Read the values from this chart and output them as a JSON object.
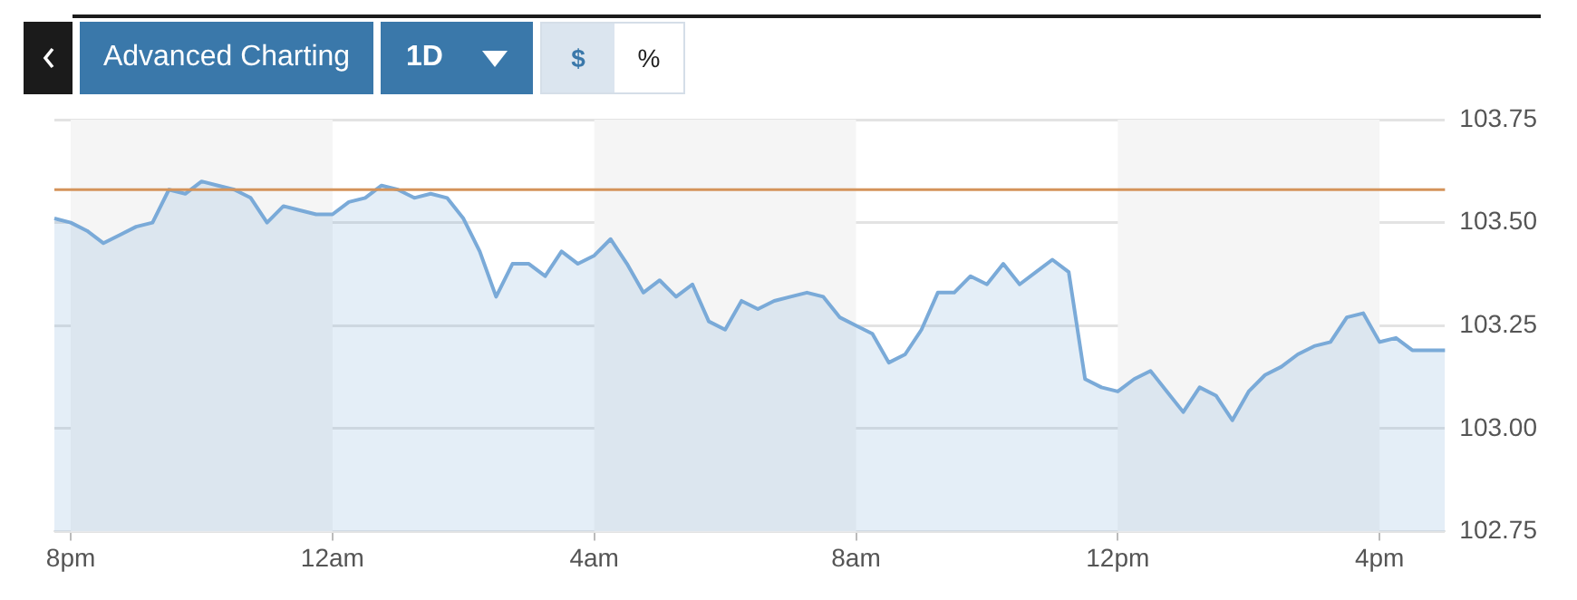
{
  "chart_data": {
    "type": "area",
    "annotations": [
      "Advanced Charting",
      "1D",
      "$",
      "%"
    ],
    "categories": [
      null,
      "8pm",
      null,
      null,
      null,
      null,
      null,
      null,
      null,
      null,
      null,
      null,
      null,
      null,
      null,
      null,
      null,
      "12am",
      null,
      null,
      null,
      null,
      null,
      null,
      null,
      null,
      null,
      null,
      null,
      null,
      null,
      null,
      null,
      "4am",
      null,
      null,
      null,
      null,
      null,
      null,
      null,
      null,
      null,
      null,
      null,
      null,
      null,
      null,
      null,
      "8am",
      null,
      null,
      null,
      null,
      null,
      null,
      null,
      null,
      null,
      null,
      null,
      null,
      null,
      null,
      null,
      "12pm",
      null,
      null,
      null,
      null,
      null,
      null,
      null,
      null,
      null,
      null,
      null,
      null,
      null,
      null,
      null,
      "4pm",
      null,
      null,
      null,
      null
    ],
    "series": [
      {
        "color": "#7aaad8",
        "values": [
          103.51,
          103.5,
          103.48,
          103.45,
          103.47,
          103.49,
          103.5,
          103.58,
          103.57,
          103.6,
          103.59,
          103.58,
          103.56,
          103.5,
          103.54,
          103.53,
          103.52,
          103.52,
          103.55,
          103.56,
          103.59,
          103.58,
          103.56,
          103.57,
          103.56,
          103.51,
          103.43,
          103.32,
          103.4,
          103.4,
          103.37,
          103.43,
          103.4,
          103.42,
          103.46,
          103.4,
          103.33,
          103.36,
          103.32,
          103.35,
          103.26,
          103.24,
          103.31,
          103.29,
          103.31,
          103.32,
          103.33,
          103.32,
          103.27,
          103.25,
          103.23,
          103.16,
          103.18,
          103.24,
          103.33,
          103.33,
          103.37,
          103.35,
          103.4,
          103.35,
          103.38,
          103.41,
          103.38,
          103.12,
          103.1,
          103.09,
          103.12,
          103.14,
          103.09,
          103.04,
          103.1,
          103.08,
          103.02,
          103.09,
          103.13,
          103.15,
          103.18,
          103.2,
          103.21,
          103.27,
          103.28,
          103.21,
          103.22,
          103.19,
          103.19,
          103.19
        ]
      }
    ],
    "ylim": [
      102.75,
      103.75
    ],
    "yticks": [
      {
        "value": 102.75,
        "label": "102.75"
      },
      {
        "value": 103,
        "label": "103.00"
      },
      {
        "value": 103.25,
        "label": "103.25"
      },
      {
        "value": 103.5,
        "label": "103.50"
      },
      {
        "value": 103.75,
        "label": "103.75"
      }
    ],
    "grid": "y",
    "legend": false,
    "marker": "none",
    "line_style": "solid",
    "ref_lines": [
      {
        "axis": "y",
        "value": 103.58,
        "color": "#d4935a"
      }
    ],
    "bands": [
      {
        "axis": "x",
        "from": "8pm",
        "to": "12am",
        "color": "#f5f5f5"
      },
      {
        "axis": "x",
        "from": "4am",
        "to": "8am",
        "color": "#f5f5f5"
      },
      {
        "axis": "x",
        "from": "12pm",
        "to": "4pm",
        "color": "#f5f5f5"
      }
    ]
  }
}
